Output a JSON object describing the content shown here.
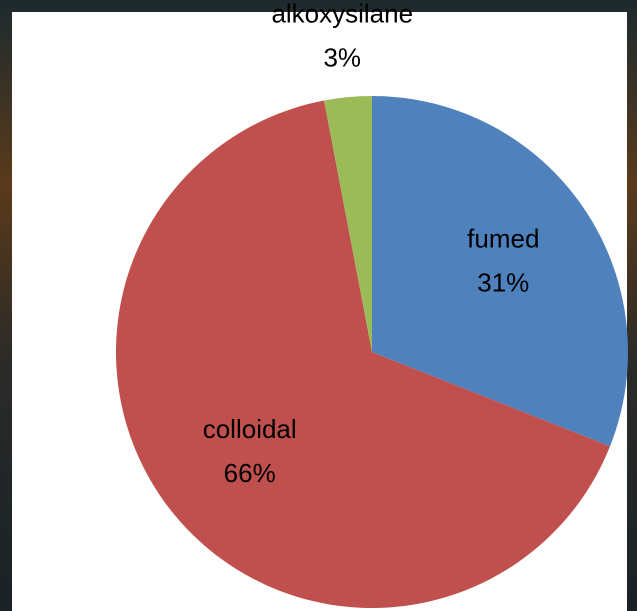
{
  "chart_data": {
    "type": "pie",
    "categories": [
      "fumed",
      "colloidal",
      "alkoxysilane"
    ],
    "values": [
      31,
      66,
      3
    ],
    "value_labels": [
      "31%",
      "66%",
      "3%"
    ],
    "colors": [
      "#4f81bd",
      "#c0504d",
      "#9bbb59"
    ]
  }
}
